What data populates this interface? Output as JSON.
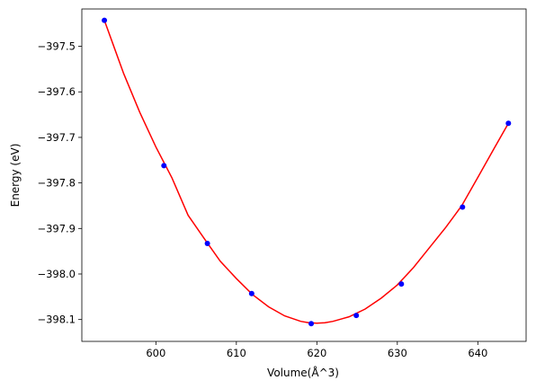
{
  "chart_data": {
    "type": "scatter",
    "title": "",
    "xlabel": "Volume(Å^3)",
    "ylabel": "Energy (eV)",
    "xlim": [
      590.8,
      646.0
    ],
    "ylim": [
      -398.148,
      -397.418
    ],
    "xticks": [
      600,
      610,
      620,
      630,
      640
    ],
    "xtick_labels": [
      "600",
      "610",
      "620",
      "630",
      "640"
    ],
    "yticks": [
      -397.5,
      -397.6,
      -397.7,
      -397.8,
      -397.9,
      -398.0,
      -398.1
    ],
    "ytick_labels": [
      "−397.5",
      "−397.6",
      "−397.7",
      "−397.8",
      "−397.9",
      "−398.0",
      "−398.1"
    ],
    "grid": false,
    "legend": "none",
    "series": [
      {
        "type": "scatter",
        "color": "#0000ff",
        "x": [
          593.6,
          601.0,
          606.4,
          611.9,
          619.3,
          624.9,
          630.5,
          638.1,
          643.8
        ],
        "y": [
          -397.443,
          -397.762,
          -397.933,
          -398.043,
          -398.109,
          -398.091,
          -398.022,
          -397.853,
          -397.669
        ]
      },
      {
        "type": "line",
        "color": "#ff0000",
        "x": [
          593.6,
          596.0,
          598.0,
          600.0,
          602.0,
          604.0,
          606.0,
          608.0,
          610.0,
          612.0,
          614.0,
          616.0,
          618.0,
          619.0,
          620.0,
          621.0,
          622.0,
          624.0,
          626.0,
          628.0,
          630.0,
          632.0,
          634.0,
          636.0,
          638.0,
          640.0,
          642.0,
          643.8
        ],
        "y": [
          -397.443,
          -397.56,
          -397.645,
          -397.721,
          -397.789,
          -397.871,
          -397.922,
          -397.972,
          -398.01,
          -398.045,
          -398.072,
          -398.092,
          -398.104,
          -398.107,
          -398.108,
          -398.107,
          -398.104,
          -398.094,
          -398.077,
          -398.053,
          -398.024,
          -397.986,
          -397.942,
          -397.898,
          -397.85,
          -397.788,
          -397.725,
          -397.669
        ]
      }
    ]
  }
}
